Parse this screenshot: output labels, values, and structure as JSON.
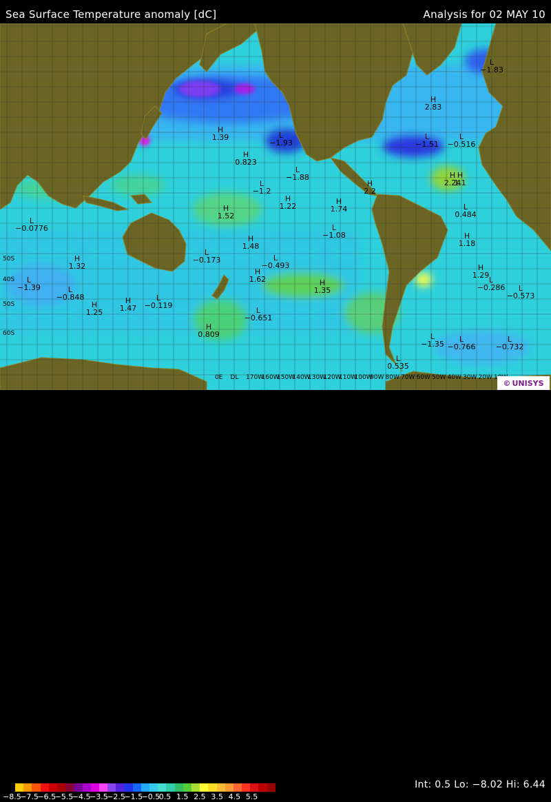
{
  "header": {
    "title": "Sea Surface Temperature anomaly [dC]",
    "analysis": "Analysis for 02 MAY 10"
  },
  "footer": {
    "stats": "Int: 0.5 Lo: −8.02 Hi: 6.44",
    "scale_labels": [
      "−8.5",
      "−7.5",
      "−6.5",
      "−5.5",
      "−4.5",
      "−3.5",
      "−2.5",
      "−1.5",
      "−0.5",
      "0.5",
      "1.5",
      "2.5",
      "3.5",
      "4.5",
      "5.5"
    ],
    "scale_colors": [
      "#ffcc00",
      "#ff9900",
      "#ff5500",
      "#ee1111",
      "#cc0000",
      "#aa0000",
      "#880033",
      "#770099",
      "#aa00cc",
      "#dd00dd",
      "#ff44ff",
      "#8844ee",
      "#5522dd",
      "#2233ee",
      "#1166ff",
      "#22aaff",
      "#33ccee",
      "#44ddcc",
      "#33ccaa",
      "#33bb66",
      "#55cc33",
      "#aadd33",
      "#ffff33",
      "#ffdd22",
      "#ffbb33",
      "#ff9933",
      "#ff6633",
      "#ff3322",
      "#dd1111",
      "#bb0000",
      "#990000"
    ]
  },
  "logo": {
    "symbol": "©",
    "text": "UNISYS"
  },
  "map": {
    "lon_labels": [
      "0E",
      "DL",
      "170W",
      "160W",
      "150W",
      "140W",
      "130W",
      "120W",
      "110W",
      "100W",
      "90W",
      "80W",
      "70W",
      "60W",
      "50W",
      "40W",
      "30W",
      "20W",
      "10W"
    ],
    "lat_labels": [
      "50S",
      "40S",
      "50S",
      "60S"
    ],
    "markers": [
      {
        "type": "H",
        "value": "1.39"
      },
      {
        "type": "H",
        "value": "0.823"
      },
      {
        "type": "L",
        "value": "−1.93"
      },
      {
        "type": "L",
        "value": "−1.88"
      },
      {
        "type": "L",
        "value": "−1.2"
      },
      {
        "type": "H",
        "value": "1.22"
      },
      {
        "type": "H",
        "value": "1.74"
      },
      {
        "type": "H",
        "value": "2.2"
      },
      {
        "type": "H",
        "value": "1.52"
      },
      {
        "type": "L",
        "value": "−0.0776"
      },
      {
        "type": "L",
        "value": "−1.08"
      },
      {
        "type": "H",
        "value": "1.48"
      },
      {
        "type": "L",
        "value": "−0.173"
      },
      {
        "type": "L",
        "value": "−0.493"
      },
      {
        "type": "H",
        "value": "1.32"
      },
      {
        "type": "L",
        "value": "−1.39"
      },
      {
        "type": "L",
        "value": "−0.848"
      },
      {
        "type": "H",
        "value": "1.62"
      },
      {
        "type": "H",
        "value": "1.35"
      },
      {
        "type": "H",
        "value": "1.25"
      },
      {
        "type": "H",
        "value": "1.47"
      },
      {
        "type": "L",
        "value": "−0.119"
      },
      {
        "type": "L",
        "value": "−0.651"
      },
      {
        "type": "H",
        "value": "0.809"
      },
      {
        "type": "H",
        "value": "2.83"
      },
      {
        "type": "L",
        "value": "−1.83"
      },
      {
        "type": "L",
        "value": "−1.51"
      },
      {
        "type": "L",
        "value": "−0.516"
      },
      {
        "type": "H",
        "value": "2.24"
      },
      {
        "type": "H",
        "value": "1.1"
      },
      {
        "type": "L",
        "value": "0.484"
      },
      {
        "type": "H",
        "value": "1.18"
      },
      {
        "type": "H",
        "value": "1.29"
      },
      {
        "type": "L",
        "value": "−0.286"
      },
      {
        "type": "L",
        "value": "−0.573"
      },
      {
        "type": "L",
        "value": "−1.35"
      },
      {
        "type": "L",
        "value": "−0.766"
      },
      {
        "type": "L",
        "value": "−0.732"
      },
      {
        "type": "L",
        "value": "0.535"
      }
    ]
  }
}
